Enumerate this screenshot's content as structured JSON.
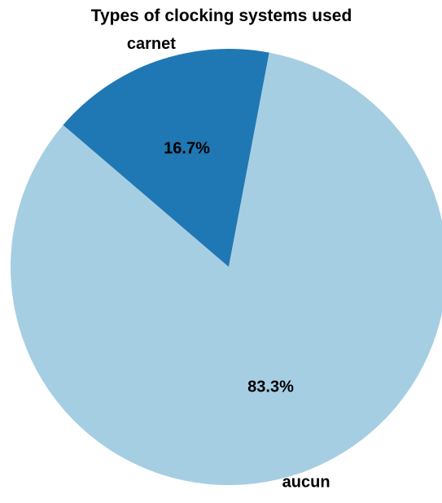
{
  "chart_data": {
    "type": "pie",
    "title": "Types of clocking systems used",
    "categories": [
      "carnet",
      "aucun"
    ],
    "values": [
      16.7,
      83.3
    ],
    "percent_labels": [
      "16.7%",
      "83.3%"
    ],
    "colors": [
      "#1f78b4",
      "#a6cee3"
    ],
    "start_angle_deg": 10.7,
    "direction": "counterclockwise",
    "legend": "none"
  }
}
